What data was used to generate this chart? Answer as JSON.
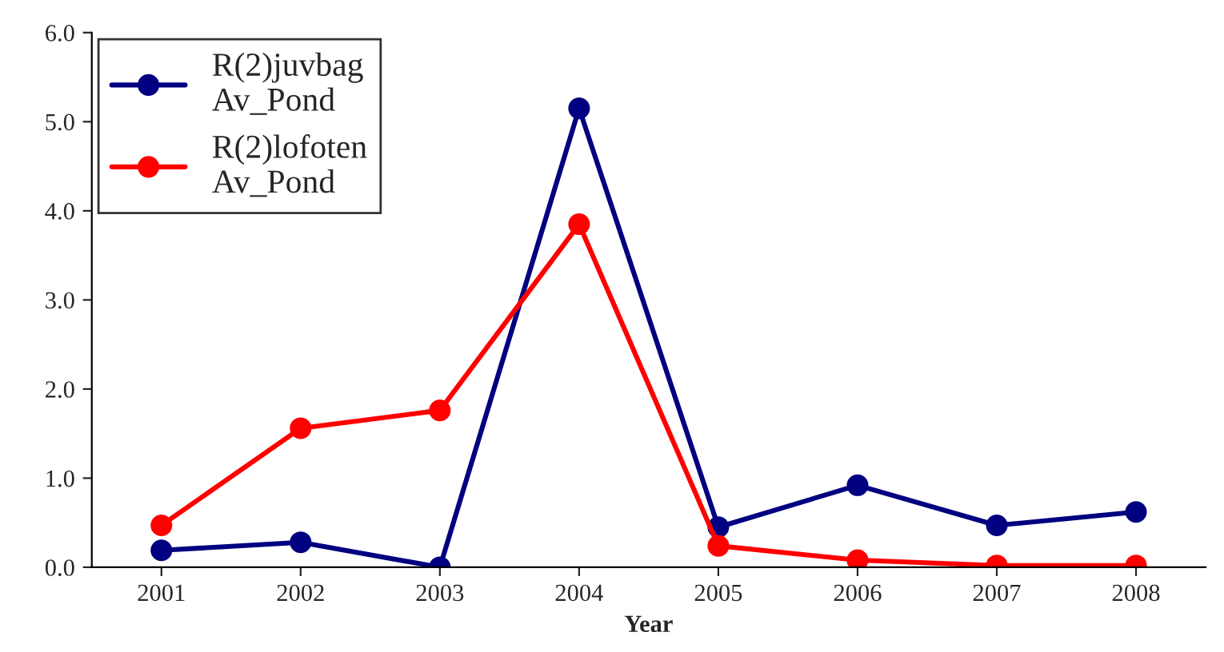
{
  "chart_data": {
    "type": "line",
    "xlabel": "Year",
    "categories": [
      "2001",
      "2002",
      "2003",
      "2004",
      "2005",
      "2006",
      "2007",
      "2008"
    ],
    "series": [
      {
        "name": "R(2)juvbag\nAv_Pond",
        "color": "#000080",
        "values": [
          0.19,
          0.28,
          0.0,
          5.15,
          0.45,
          0.92,
          0.47,
          0.62
        ]
      },
      {
        "name": "R(2)lofoten\nAv_Pond",
        "color": "#ff0000",
        "values": [
          0.47,
          1.56,
          1.76,
          3.85,
          0.24,
          0.08,
          0.02,
          0.02
        ]
      }
    ],
    "ylim": [
      0,
      6
    ],
    "yticks": [
      {
        "value": 0,
        "label": "0.0"
      },
      {
        "value": 1,
        "label": "1.0"
      },
      {
        "value": 2,
        "label": "2.0"
      },
      {
        "value": 3,
        "label": "3.0"
      },
      {
        "value": 4,
        "label": "4.0"
      },
      {
        "value": 5,
        "label": "5.0"
      },
      {
        "value": 6,
        "label": "6.0"
      }
    ],
    "grid": false,
    "legend": "top left",
    "marker": "circle",
    "line_style": "solid"
  }
}
